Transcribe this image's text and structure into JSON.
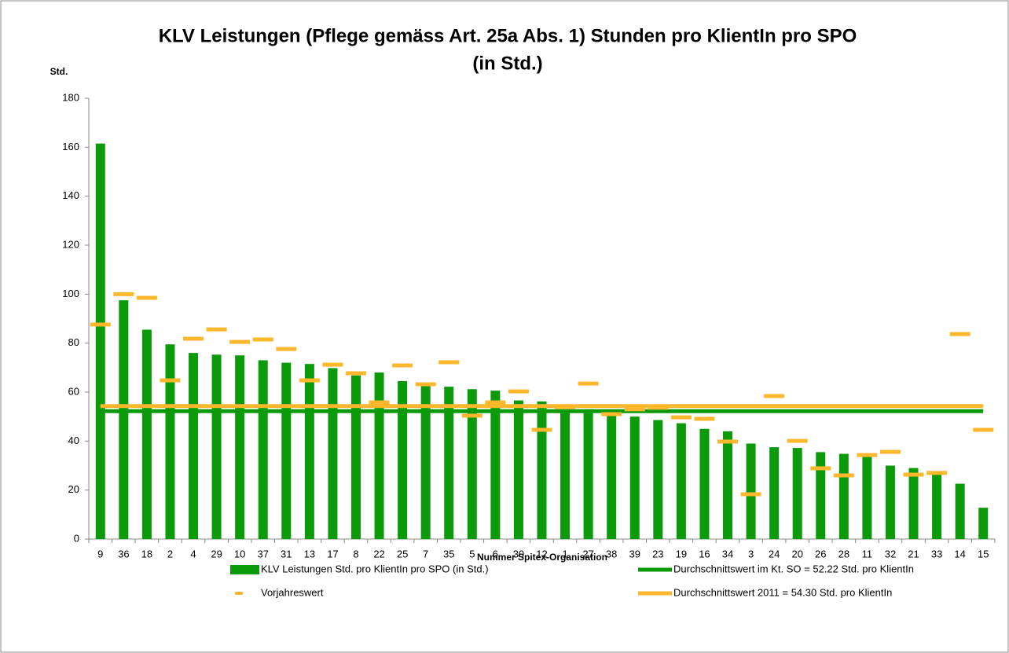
{
  "chart_data": {
    "type": "bar",
    "title": [
      "KLV Leistungen (Pflege gemäss Art. 25a Abs. 1) Stunden pro KlientIn pro SPO",
      "(in Std.)"
    ],
    "y_label": "Std.",
    "x_label": "Nummer Spitex-Organisation",
    "categories": [
      "9",
      "36",
      "18",
      "2",
      "4",
      "29",
      "10",
      "37",
      "31",
      "13",
      "17",
      "8",
      "22",
      "25",
      "7",
      "35",
      "5",
      "6",
      "30",
      "12",
      "1",
      "27",
      "38",
      "39",
      "23",
      "19",
      "16",
      "34",
      "3",
      "24",
      "20",
      "26",
      "28",
      "11",
      "32",
      "21",
      "33",
      "14",
      "15"
    ],
    "series": [
      {
        "name": "KLV Leistungen Std. pro KlientIn pro SPO (in Std.)",
        "kind": "bar",
        "color": "#0a9a0a",
        "values": [
          161.5,
          97.5,
          85.5,
          79.5,
          76,
          75.3,
          75,
          73,
          72,
          71.5,
          69.8,
          66.8,
          68,
          64.5,
          63,
          62.2,
          61.2,
          60.6,
          56.6,
          56.2,
          52.4,
          53,
          50.6,
          50,
          48.6,
          47.3,
          45,
          44,
          39,
          37.5,
          37.2,
          35.5,
          34.8,
          33.8,
          30,
          29,
          27,
          22.6,
          12.8
        ]
      },
      {
        "name": "Vorjahreswert",
        "kind": "marker",
        "color": "#fdb72c",
        "values": [
          87.6,
          100,
          98.5,
          64.8,
          81.8,
          85.6,
          80.5,
          81.5,
          77.6,
          64.8,
          71.2,
          67.7,
          55.8,
          70.9,
          63.2,
          72.2,
          50.4,
          55.8,
          60.3,
          44.6,
          53.9,
          63.5,
          51,
          53,
          53.6,
          49.7,
          49.1,
          39.8,
          18.3,
          58.4,
          40.1,
          28.9,
          26,
          34.3,
          35.6,
          26.3,
          27,
          83.7,
          44.6
        ]
      }
    ],
    "lines": [
      {
        "name": "Durchschnittswert im Kt. SO = 52.22 Std. pro KlientIn",
        "color": "#0a9a0a",
        "value": 52.22
      },
      {
        "name": "Durchschnittswert 2011 = 54.30 Std. pro KlientIn",
        "color": "#fdb72c",
        "value": 54.3
      }
    ],
    "ylim": [
      0,
      180
    ],
    "yticks": [
      0,
      20,
      40,
      60,
      80,
      100,
      120,
      140,
      160,
      180
    ]
  }
}
